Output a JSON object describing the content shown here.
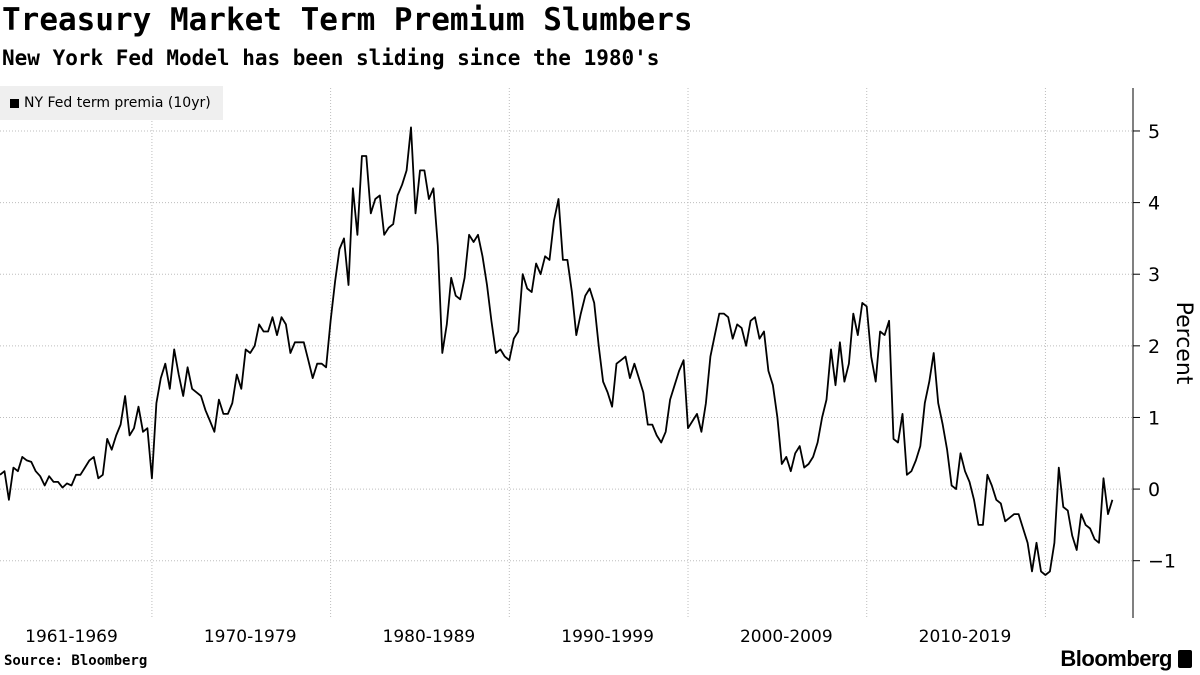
{
  "header": {
    "title": "Treasury Market Term Premium Slumbers",
    "subtitle": "New York Fed Model has been sliding since the 1980's"
  },
  "footer": {
    "source": "Source: Bloomberg",
    "brand": "Bloomberg"
  },
  "colors": {
    "line": "#000000",
    "grid": "#bdbdbd",
    "legend_bg": "#efefef"
  },
  "chart_data": {
    "type": "line",
    "ylabel": "Percent",
    "ylim": [
      -1.8,
      5.6
    ],
    "yticks": [
      -1,
      0,
      1,
      2,
      3,
      4,
      5
    ],
    "xlim": [
      1961.0,
      2024.4
    ],
    "x_tick_labels": [
      {
        "label": "1961-1969",
        "center": 1965.0
      },
      {
        "label": "1970-1979",
        "center": 1975.0
      },
      {
        "label": "1980-1989",
        "center": 1985.0
      },
      {
        "label": "1990-1999",
        "center": 1995.0
      },
      {
        "label": "2000-2009",
        "center": 2005.0
      },
      {
        "label": "2010-2019",
        "center": 2015.0
      }
    ],
    "x_gridlines": [
      1969.5,
      1979.5,
      1989.5,
      1999.5,
      2009.5,
      2019.5
    ],
    "grid": true,
    "legend_position": "top-left",
    "series": [
      {
        "name": "NY Fed term premia (10yr)",
        "points": [
          [
            1961.0,
            0.2
          ],
          [
            1961.25,
            0.25
          ],
          [
            1961.5,
            -0.15
          ],
          [
            1961.75,
            0.3
          ],
          [
            1962.0,
            0.25
          ],
          [
            1962.25,
            0.45
          ],
          [
            1962.5,
            0.4
          ],
          [
            1962.75,
            0.38
          ],
          [
            1963.0,
            0.25
          ],
          [
            1963.25,
            0.18
          ],
          [
            1963.5,
            0.05
          ],
          [
            1963.75,
            0.18
          ],
          [
            1964.0,
            0.1
          ],
          [
            1964.25,
            0.1
          ],
          [
            1964.5,
            0.02
          ],
          [
            1964.75,
            0.08
          ],
          [
            1965.0,
            0.05
          ],
          [
            1965.25,
            0.2
          ],
          [
            1965.5,
            0.2
          ],
          [
            1965.75,
            0.3
          ],
          [
            1966.0,
            0.4
          ],
          [
            1966.25,
            0.45
          ],
          [
            1966.5,
            0.15
          ],
          [
            1966.75,
            0.2
          ],
          [
            1967.0,
            0.7
          ],
          [
            1967.25,
            0.55
          ],
          [
            1967.5,
            0.75
          ],
          [
            1967.75,
            0.9
          ],
          [
            1968.0,
            1.3
          ],
          [
            1968.25,
            0.75
          ],
          [
            1968.5,
            0.85
          ],
          [
            1968.75,
            1.15
          ],
          [
            1969.0,
            0.8
          ],
          [
            1969.25,
            0.85
          ],
          [
            1969.5,
            0.15
          ],
          [
            1969.75,
            1.2
          ],
          [
            1970.0,
            1.55
          ],
          [
            1970.25,
            1.75
          ],
          [
            1970.5,
            1.4
          ],
          [
            1970.75,
            1.95
          ],
          [
            1971.0,
            1.6
          ],
          [
            1971.25,
            1.3
          ],
          [
            1971.5,
            1.7
          ],
          [
            1971.75,
            1.4
          ],
          [
            1972.0,
            1.35
          ],
          [
            1972.25,
            1.3
          ],
          [
            1972.5,
            1.1
          ],
          [
            1972.75,
            0.95
          ],
          [
            1973.0,
            0.8
          ],
          [
            1973.25,
            1.25
          ],
          [
            1973.5,
            1.05
          ],
          [
            1973.75,
            1.05
          ],
          [
            1974.0,
            1.2
          ],
          [
            1974.25,
            1.6
          ],
          [
            1974.5,
            1.4
          ],
          [
            1974.75,
            1.95
          ],
          [
            1975.0,
            1.9
          ],
          [
            1975.25,
            2.0
          ],
          [
            1975.5,
            2.3
          ],
          [
            1975.75,
            2.2
          ],
          [
            1976.0,
            2.2
          ],
          [
            1976.25,
            2.4
          ],
          [
            1976.5,
            2.15
          ],
          [
            1976.75,
            2.4
          ],
          [
            1977.0,
            2.3
          ],
          [
            1977.25,
            1.9
          ],
          [
            1977.5,
            2.05
          ],
          [
            1977.75,
            2.05
          ],
          [
            1978.0,
            2.05
          ],
          [
            1978.25,
            1.8
          ],
          [
            1978.5,
            1.55
          ],
          [
            1978.75,
            1.75
          ],
          [
            1979.0,
            1.75
          ],
          [
            1979.25,
            1.7
          ],
          [
            1979.5,
            2.35
          ],
          [
            1979.75,
            2.9
          ],
          [
            1980.0,
            3.35
          ],
          [
            1980.25,
            3.5
          ],
          [
            1980.5,
            2.85
          ],
          [
            1980.75,
            4.2
          ],
          [
            1981.0,
            3.55
          ],
          [
            1981.25,
            4.65
          ],
          [
            1981.5,
            4.65
          ],
          [
            1981.75,
            3.85
          ],
          [
            1982.0,
            4.05
          ],
          [
            1982.25,
            4.1
          ],
          [
            1982.5,
            3.55
          ],
          [
            1982.75,
            3.65
          ],
          [
            1983.0,
            3.7
          ],
          [
            1983.25,
            4.1
          ],
          [
            1983.5,
            4.25
          ],
          [
            1983.75,
            4.45
          ],
          [
            1984.0,
            5.05
          ],
          [
            1984.25,
            3.85
          ],
          [
            1984.5,
            4.45
          ],
          [
            1984.75,
            4.45
          ],
          [
            1985.0,
            4.05
          ],
          [
            1985.25,
            4.2
          ],
          [
            1985.5,
            3.4
          ],
          [
            1985.75,
            1.9
          ],
          [
            1986.0,
            2.3
          ],
          [
            1986.25,
            2.95
          ],
          [
            1986.5,
            2.7
          ],
          [
            1986.75,
            2.65
          ],
          [
            1987.0,
            2.95
          ],
          [
            1987.25,
            3.55
          ],
          [
            1987.5,
            3.45
          ],
          [
            1987.75,
            3.55
          ],
          [
            1988.0,
            3.25
          ],
          [
            1988.25,
            2.85
          ],
          [
            1988.5,
            2.35
          ],
          [
            1988.75,
            1.9
          ],
          [
            1989.0,
            1.95
          ],
          [
            1989.25,
            1.85
          ],
          [
            1989.5,
            1.8
          ],
          [
            1989.75,
            2.1
          ],
          [
            1990.0,
            2.2
          ],
          [
            1990.25,
            3.0
          ],
          [
            1990.5,
            2.8
          ],
          [
            1990.75,
            2.75
          ],
          [
            1991.0,
            3.15
          ],
          [
            1991.25,
            3.0
          ],
          [
            1991.5,
            3.25
          ],
          [
            1991.75,
            3.2
          ],
          [
            1992.0,
            3.75
          ],
          [
            1992.25,
            4.05
          ],
          [
            1992.5,
            3.2
          ],
          [
            1992.75,
            3.2
          ],
          [
            1993.0,
            2.75
          ],
          [
            1993.25,
            2.15
          ],
          [
            1993.5,
            2.45
          ],
          [
            1993.75,
            2.7
          ],
          [
            1994.0,
            2.8
          ],
          [
            1994.25,
            2.6
          ],
          [
            1994.5,
            2.0
          ],
          [
            1994.75,
            1.5
          ],
          [
            1995.0,
            1.35
          ],
          [
            1995.25,
            1.15
          ],
          [
            1995.5,
            1.75
          ],
          [
            1995.75,
            1.8
          ],
          [
            1996.0,
            1.85
          ],
          [
            1996.25,
            1.55
          ],
          [
            1996.5,
            1.75
          ],
          [
            1996.75,
            1.55
          ],
          [
            1997.0,
            1.35
          ],
          [
            1997.25,
            0.9
          ],
          [
            1997.5,
            0.9
          ],
          [
            1997.75,
            0.75
          ],
          [
            1998.0,
            0.65
          ],
          [
            1998.25,
            0.8
          ],
          [
            1998.5,
            1.25
          ],
          [
            1998.75,
            1.45
          ],
          [
            1999.0,
            1.65
          ],
          [
            1999.25,
            1.8
          ],
          [
            1999.5,
            0.85
          ],
          [
            1999.75,
            0.95
          ],
          [
            2000.0,
            1.05
          ],
          [
            2000.25,
            0.8
          ],
          [
            2000.5,
            1.2
          ],
          [
            2000.75,
            1.85
          ],
          [
            2001.0,
            2.15
          ],
          [
            2001.25,
            2.45
          ],
          [
            2001.5,
            2.45
          ],
          [
            2001.75,
            2.4
          ],
          [
            2002.0,
            2.1
          ],
          [
            2002.25,
            2.3
          ],
          [
            2002.5,
            2.25
          ],
          [
            2002.75,
            2.0
          ],
          [
            2003.0,
            2.35
          ],
          [
            2003.25,
            2.4
          ],
          [
            2003.5,
            2.1
          ],
          [
            2003.75,
            2.2
          ],
          [
            2004.0,
            1.65
          ],
          [
            2004.25,
            1.45
          ],
          [
            2004.5,
            1.0
          ],
          [
            2004.75,
            0.35
          ],
          [
            2005.0,
            0.45
          ],
          [
            2005.25,
            0.25
          ],
          [
            2005.5,
            0.5
          ],
          [
            2005.75,
            0.6
          ],
          [
            2006.0,
            0.3
          ],
          [
            2006.25,
            0.35
          ],
          [
            2006.5,
            0.45
          ],
          [
            2006.75,
            0.65
          ],
          [
            2007.0,
            1.0
          ],
          [
            2007.25,
            1.25
          ],
          [
            2007.5,
            1.95
          ],
          [
            2007.75,
            1.45
          ],
          [
            2008.0,
            2.05
          ],
          [
            2008.25,
            1.5
          ],
          [
            2008.5,
            1.75
          ],
          [
            2008.75,
            2.45
          ],
          [
            2009.0,
            2.15
          ],
          [
            2009.25,
            2.6
          ],
          [
            2009.5,
            2.55
          ],
          [
            2009.75,
            1.85
          ],
          [
            2010.0,
            1.5
          ],
          [
            2010.25,
            2.2
          ],
          [
            2010.5,
            2.15
          ],
          [
            2010.75,
            2.35
          ],
          [
            2011.0,
            0.7
          ],
          [
            2011.25,
            0.65
          ],
          [
            2011.5,
            1.05
          ],
          [
            2011.75,
            0.2
          ],
          [
            2012.0,
            0.25
          ],
          [
            2012.25,
            0.4
          ],
          [
            2012.5,
            0.6
          ],
          [
            2012.75,
            1.2
          ],
          [
            2013.0,
            1.5
          ],
          [
            2013.25,
            1.9
          ],
          [
            2013.5,
            1.2
          ],
          [
            2013.75,
            0.9
          ],
          [
            2014.0,
            0.55
          ],
          [
            2014.25,
            0.05
          ],
          [
            2014.5,
            0.0
          ],
          [
            2014.75,
            0.5
          ],
          [
            2015.0,
            0.25
          ],
          [
            2015.25,
            0.1
          ],
          [
            2015.5,
            -0.15
          ],
          [
            2015.75,
            -0.5
          ],
          [
            2016.0,
            -0.5
          ],
          [
            2016.25,
            0.2
          ],
          [
            2016.5,
            0.05
          ],
          [
            2016.75,
            -0.15
          ],
          [
            2017.0,
            -0.2
          ],
          [
            2017.25,
            -0.45
          ],
          [
            2017.5,
            -0.4
          ],
          [
            2017.75,
            -0.35
          ],
          [
            2018.0,
            -0.35
          ],
          [
            2018.25,
            -0.55
          ],
          [
            2018.5,
            -0.75
          ],
          [
            2018.75,
            -1.15
          ],
          [
            2019.0,
            -0.75
          ],
          [
            2019.25,
            -1.15
          ],
          [
            2019.5,
            -1.2
          ],
          [
            2019.75,
            -1.15
          ],
          [
            2020.0,
            -0.75
          ],
          [
            2020.25,
            0.3
          ],
          [
            2020.5,
            -0.25
          ],
          [
            2020.75,
            -0.3
          ],
          [
            2021.0,
            -0.65
          ],
          [
            2021.25,
            -0.85
          ],
          [
            2021.5,
            -0.35
          ],
          [
            2021.75,
            -0.5
          ],
          [
            2022.0,
            -0.55
          ],
          [
            2022.25,
            -0.7
          ],
          [
            2022.5,
            -0.75
          ],
          [
            2022.75,
            0.15
          ],
          [
            2023.0,
            -0.35
          ],
          [
            2023.25,
            -0.15
          ]
        ]
      }
    ]
  }
}
